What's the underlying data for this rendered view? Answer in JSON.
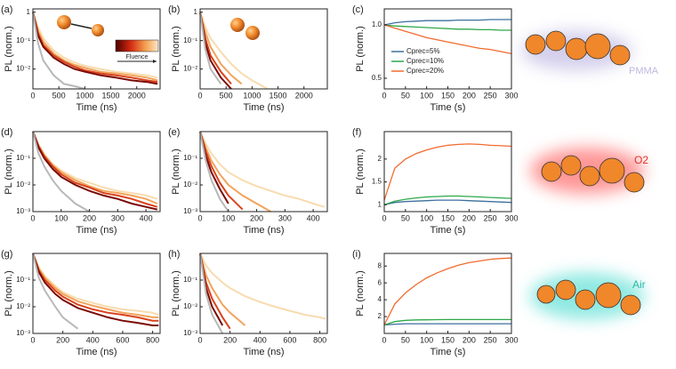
{
  "chart_data": [
    {
      "type": "line",
      "panel_label": "(a)",
      "log_y": true,
      "xlabel": "Time (ns)",
      "ylabel": "PL (norm.)",
      "inset_label": "Fluence",
      "xlim": [
        0,
        2450
      ],
      "xticks": [
        0,
        500,
        1000,
        1500,
        2000
      ],
      "ylim": [
        0.002,
        1.3
      ],
      "yticks": [
        {
          "value": 1,
          "label": "1"
        },
        {
          "value": 0.1,
          "label": "10⁻¹"
        },
        {
          "value": 0.01,
          "label": "10⁻²"
        }
      ],
      "x": [
        0,
        100,
        200,
        400,
        600,
        800,
        1000,
        1300,
        1600,
        1900,
        2200,
        2400
      ],
      "series": [
        {
          "color": "#f7dcb0",
          "values": [
            1,
            0.3,
            0.12,
            0.045,
            0.025,
            0.017,
            0.013,
            0.01,
            0.008,
            0.007,
            0.006,
            0.005
          ]
        },
        {
          "color": "#f2a35a",
          "values": [
            1,
            0.22,
            0.09,
            0.035,
            0.02,
            0.014,
            0.011,
            0.008,
            0.007,
            0.006,
            0.005,
            0.004
          ]
        },
        {
          "color": "#d9421c",
          "values": [
            1,
            0.18,
            0.07,
            0.03,
            0.018,
            0.012,
            0.009,
            0.007,
            0.006,
            0.005,
            0.004,
            0.0035
          ]
        },
        {
          "color": "#7a0a05",
          "values": [
            1,
            0.15,
            0.06,
            0.025,
            0.015,
            0.01,
            0.008,
            0.006,
            0.005,
            0.004,
            0.0035,
            0.003
          ]
        },
        {
          "color": "#b8b8b8",
          "values": [
            1,
            0.08,
            0.02,
            0.006,
            0.003,
            0.0025,
            0.002,
            null,
            null,
            null,
            null,
            null
          ]
        }
      ]
    },
    {
      "type": "line",
      "panel_label": "(b)",
      "log_y": true,
      "xlabel": "Time (ns)",
      "ylabel": "PL (norm.)",
      "xlim": [
        0,
        2450
      ],
      "xticks": [
        0,
        500,
        1000,
        1500,
        2000
      ],
      "ylim": [
        0.002,
        1.3
      ],
      "yticks": [
        {
          "value": 1,
          "label": "1"
        },
        {
          "value": 0.1,
          "label": "10⁻¹"
        },
        {
          "value": 0.01,
          "label": "10⁻²"
        }
      ],
      "x": [
        0,
        100,
        200,
        400,
        600,
        800,
        1000,
        1300,
        1600,
        1900,
        2200,
        2400
      ],
      "series": [
        {
          "color": "#f7dcb0",
          "values": [
            1,
            0.3,
            0.12,
            0.04,
            0.015,
            0.007,
            0.004,
            0.002,
            null,
            null,
            null,
            null
          ]
        },
        {
          "color": "#f2a35a",
          "values": [
            1,
            0.2,
            0.06,
            0.015,
            0.006,
            0.003,
            null,
            null,
            null,
            null,
            null,
            null
          ]
        },
        {
          "color": "#d9421c",
          "values": [
            1,
            0.12,
            0.03,
            0.008,
            0.003,
            null,
            null,
            null,
            null,
            null,
            null,
            null
          ]
        },
        {
          "color": "#7a0a05",
          "values": [
            1,
            0.08,
            0.02,
            0.005,
            0.002,
            null,
            null,
            null,
            null,
            null,
            null,
            null
          ]
        },
        {
          "color": "#b8b8b8",
          "values": [
            1,
            0.05,
            0.01,
            0.003,
            null,
            null,
            null,
            null,
            null,
            null,
            null,
            null
          ]
        }
      ]
    },
    {
      "type": "line",
      "panel_label": "(c)",
      "log_y": false,
      "xlabel": "Time (s)",
      "ylabel": "PL (norm.)",
      "legend": "left",
      "xlim": [
        0,
        300
      ],
      "xticks": [
        0,
        50,
        100,
        150,
        200,
        250,
        300
      ],
      "ylim": [
        0.4,
        1.15
      ],
      "yticks": [
        {
          "value": 0.5,
          "label": "0.5"
        },
        {
          "value": 1,
          "label": "1.0"
        }
      ],
      "x": [
        0,
        25,
        50,
        75,
        100,
        125,
        150,
        175,
        200,
        225,
        250,
        275,
        300
      ],
      "series": [
        {
          "name": "Cprec=5%",
          "color": "#3d6f9e",
          "values": [
            1,
            1.02,
            1.03,
            1.035,
            1.04,
            1.04,
            1.04,
            1.045,
            1.045,
            1.045,
            1.05,
            1.05,
            1.05
          ]
        },
        {
          "name": "Cprec=10%",
          "color": "#2ea84a",
          "values": [
            1,
            0.99,
            0.985,
            0.98,
            0.975,
            0.97,
            0.965,
            0.96,
            0.96,
            0.955,
            0.955,
            0.95,
            0.95
          ]
        },
        {
          "name": "Cprec=20%",
          "color": "#f26a2e",
          "values": [
            1,
            0.97,
            0.94,
            0.91,
            0.88,
            0.86,
            0.84,
            0.82,
            0.8,
            0.78,
            0.77,
            0.75,
            0.73
          ]
        }
      ]
    },
    {
      "type": "line",
      "panel_label": "(d)",
      "log_y": true,
      "xlabel": "Time (ns)",
      "ylabel": "PL (norm.)",
      "xlim": [
        0,
        450
      ],
      "xticks": [
        0,
        100,
        200,
        300,
        400
      ],
      "ylim": [
        0.001,
        1
      ],
      "yticks": [
        {
          "value": 0.1,
          "label": "10⁻¹"
        },
        {
          "value": 0.01,
          "label": "10⁻²"
        },
        {
          "value": 0.001,
          "label": "10⁻³"
        }
      ],
      "x": [
        0,
        20,
        40,
        70,
        100,
        150,
        200,
        250,
        300,
        350,
        400,
        440
      ],
      "series": [
        {
          "color": "#f7dcb0",
          "values": [
            1,
            0.32,
            0.15,
            0.06,
            0.035,
            0.018,
            0.012,
            0.008,
            0.006,
            0.005,
            0.004,
            0.003
          ]
        },
        {
          "color": "#f2a35a",
          "values": [
            1,
            0.3,
            0.13,
            0.055,
            0.03,
            0.015,
            0.009,
            0.006,
            0.005,
            0.004,
            0.003,
            0.002
          ]
        },
        {
          "color": "#d9421c",
          "values": [
            1,
            0.28,
            0.12,
            0.05,
            0.025,
            0.012,
            0.008,
            0.005,
            0.004,
            0.003,
            0.002,
            0.0015
          ]
        },
        {
          "color": "#7a0a05",
          "values": [
            1,
            0.25,
            0.1,
            0.04,
            0.02,
            0.01,
            0.006,
            0.004,
            0.003,
            0.002,
            0.0015,
            0.0012
          ]
        },
        {
          "color": "#b8b8b8",
          "values": [
            1,
            0.15,
            0.05,
            0.015,
            0.006,
            0.002,
            0.001,
            null,
            null,
            null,
            null,
            null
          ]
        }
      ]
    },
    {
      "type": "line",
      "panel_label": "(e)",
      "log_y": true,
      "xlabel": "Time (ns)",
      "ylabel": "PL (norm.)",
      "xlim": [
        0,
        450
      ],
      "xticks": [
        0,
        100,
        200,
        300,
        400
      ],
      "ylim": [
        0.001,
        1
      ],
      "yticks": [
        {
          "value": 0.1,
          "label": "10⁻¹"
        },
        {
          "value": 0.01,
          "label": "10⁻²"
        },
        {
          "value": 0.001,
          "label": "10⁻³"
        }
      ],
      "x": [
        0,
        20,
        40,
        70,
        100,
        150,
        200,
        250,
        300,
        350,
        400,
        440
      ],
      "series": [
        {
          "color": "#f7dcb0",
          "values": [
            1,
            0.35,
            0.15,
            0.06,
            0.03,
            0.015,
            0.009,
            0.006,
            0.004,
            0.003,
            0.002,
            0.0015
          ]
        },
        {
          "color": "#f2a35a",
          "values": [
            1,
            0.25,
            0.08,
            0.025,
            0.01,
            0.004,
            0.002,
            0.001,
            null,
            null,
            null,
            null
          ]
        },
        {
          "color": "#d9421c",
          "values": [
            1,
            0.18,
            0.05,
            0.012,
            0.004,
            0.0012,
            null,
            null,
            null,
            null,
            null,
            null
          ]
        },
        {
          "color": "#7a0a05",
          "values": [
            1,
            0.12,
            0.03,
            0.007,
            0.002,
            null,
            null,
            null,
            null,
            null,
            null,
            null
          ]
        },
        {
          "color": "#b8b8b8",
          "values": [
            1,
            0.08,
            0.015,
            0.003,
            0.001,
            null,
            null,
            null,
            null,
            null,
            null,
            null
          ]
        }
      ]
    },
    {
      "type": "line",
      "panel_label": "(f)",
      "log_y": false,
      "xlabel": "Time (s)",
      "ylabel": "PL (norm.)",
      "xlim": [
        0,
        300
      ],
      "xticks": [
        0,
        50,
        100,
        150,
        200,
        250,
        300
      ],
      "ylim": [
        0.85,
        2.6
      ],
      "yticks": [
        1,
        1.5,
        2
      ],
      "x": [
        0,
        25,
        50,
        75,
        100,
        125,
        150,
        175,
        200,
        225,
        250,
        275,
        300
      ],
      "series": [
        {
          "color": "#3d6f9e",
          "values": [
            1,
            1.05,
            1.07,
            1.08,
            1.09,
            1.1,
            1.1,
            1.1,
            1.09,
            1.08,
            1.07,
            1.06,
            1.05
          ]
        },
        {
          "color": "#2ea84a",
          "values": [
            1,
            1.08,
            1.12,
            1.15,
            1.17,
            1.18,
            1.19,
            1.19,
            1.18,
            1.17,
            1.16,
            1.15,
            1.14
          ]
        },
        {
          "color": "#f26a2e",
          "values": [
            1.1,
            1.8,
            2.0,
            2.12,
            2.2,
            2.26,
            2.3,
            2.32,
            2.33,
            2.32,
            2.3,
            2.29,
            2.28
          ]
        }
      ]
    },
    {
      "type": "line",
      "panel_label": "(g)",
      "log_y": true,
      "xlabel": "Time (ns)",
      "ylabel": "PL (norm.)",
      "xlim": [
        0,
        850
      ],
      "xticks": [
        0,
        200,
        400,
        600,
        800
      ],
      "ylim": [
        0.001,
        1
      ],
      "yticks": [
        {
          "value": 0.1,
          "label": "10⁻¹"
        },
        {
          "value": 0.01,
          "label": "10⁻²"
        },
        {
          "value": 0.001,
          "label": "10⁻³"
        }
      ],
      "x": [
        0,
        40,
        80,
        150,
        200,
        300,
        400,
        500,
        600,
        700,
        800,
        840
      ],
      "series": [
        {
          "color": "#f7dcb0",
          "values": [
            1,
            0.3,
            0.14,
            0.06,
            0.035,
            0.02,
            0.014,
            0.01,
            0.008,
            0.007,
            0.006,
            0.005
          ]
        },
        {
          "color": "#f2a35a",
          "values": [
            1,
            0.26,
            0.12,
            0.05,
            0.03,
            0.016,
            0.011,
            0.008,
            0.006,
            0.005,
            0.004,
            0.004
          ]
        },
        {
          "color": "#d9421c",
          "values": [
            1,
            0.23,
            0.1,
            0.04,
            0.024,
            0.012,
            0.008,
            0.006,
            0.005,
            0.004,
            0.003,
            0.003
          ]
        },
        {
          "color": "#7a0a05",
          "values": [
            1,
            0.2,
            0.08,
            0.03,
            0.018,
            0.009,
            0.006,
            0.004,
            0.003,
            0.0025,
            0.002,
            0.002
          ]
        },
        {
          "color": "#b8b8b8",
          "values": [
            1,
            0.12,
            0.04,
            0.01,
            0.004,
            0.0015,
            null,
            null,
            null,
            null,
            null,
            null
          ]
        }
      ]
    },
    {
      "type": "line",
      "panel_label": "(h)",
      "log_y": true,
      "xlabel": "Time (ns)",
      "ylabel": "PL (norm.)",
      "xlim": [
        0,
        850
      ],
      "xticks": [
        0,
        200,
        400,
        600,
        800
      ],
      "ylim": [
        0.001,
        1
      ],
      "yticks": [
        {
          "value": 0.1,
          "label": "10⁻¹"
        },
        {
          "value": 0.01,
          "label": "10⁻²"
        },
        {
          "value": 0.001,
          "label": "10⁻³"
        }
      ],
      "x": [
        0,
        40,
        80,
        150,
        200,
        300,
        400,
        500,
        600,
        700,
        800,
        840
      ],
      "series": [
        {
          "color": "#f7dcb0",
          "values": [
            1,
            0.35,
            0.18,
            0.08,
            0.05,
            0.025,
            0.015,
            0.01,
            0.007,
            0.005,
            0.004,
            0.0035
          ]
        },
        {
          "color": "#f2a35a",
          "values": [
            1,
            0.15,
            0.05,
            0.012,
            0.006,
            0.002,
            null,
            null,
            null,
            null,
            null,
            null
          ]
        },
        {
          "color": "#d9421c",
          "values": [
            1,
            0.08,
            0.02,
            0.004,
            0.0015,
            null,
            null,
            null,
            null,
            null,
            null,
            null
          ]
        },
        {
          "color": "#7a0a05",
          "values": [
            1,
            0.05,
            0.01,
            0.002,
            null,
            null,
            null,
            null,
            null,
            null,
            null,
            null
          ]
        },
        {
          "color": "#b8b8b8",
          "values": [
            1,
            0.03,
            0.005,
            0.001,
            null,
            null,
            null,
            null,
            null,
            null,
            null,
            null
          ]
        }
      ]
    },
    {
      "type": "line",
      "panel_label": "(i)",
      "log_y": false,
      "xlabel": "Time (s)",
      "ylabel": "PL (norm.)",
      "xlim": [
        0,
        300
      ],
      "xticks": [
        0,
        50,
        100,
        150,
        200,
        250,
        300
      ],
      "ylim": [
        0,
        9.5
      ],
      "yticks": [
        2,
        4,
        6,
        8
      ],
      "x": [
        0,
        25,
        50,
        75,
        100,
        125,
        150,
        175,
        200,
        225,
        250,
        275,
        300
      ],
      "series": [
        {
          "color": "#3d6f9e",
          "values": [
            1,
            1.1,
            1.15,
            1.15,
            1.15,
            1.15,
            1.15,
            1.15,
            1.15,
            1.15,
            1.15,
            1.15,
            1.15
          ]
        },
        {
          "color": "#2ea84a",
          "values": [
            1,
            1.4,
            1.55,
            1.6,
            1.62,
            1.64,
            1.65,
            1.65,
            1.65,
            1.65,
            1.65,
            1.65,
            1.65
          ]
        },
        {
          "color": "#f26a2e",
          "values": [
            1,
            3.5,
            4.8,
            5.8,
            6.6,
            7.2,
            7.7,
            8.1,
            8.4,
            8.6,
            8.8,
            8.9,
            8.95
          ]
        }
      ]
    }
  ],
  "schematics": [
    {
      "label": "PMMA"
    },
    {
      "label": "O2"
    },
    {
      "label": "Air"
    }
  ]
}
